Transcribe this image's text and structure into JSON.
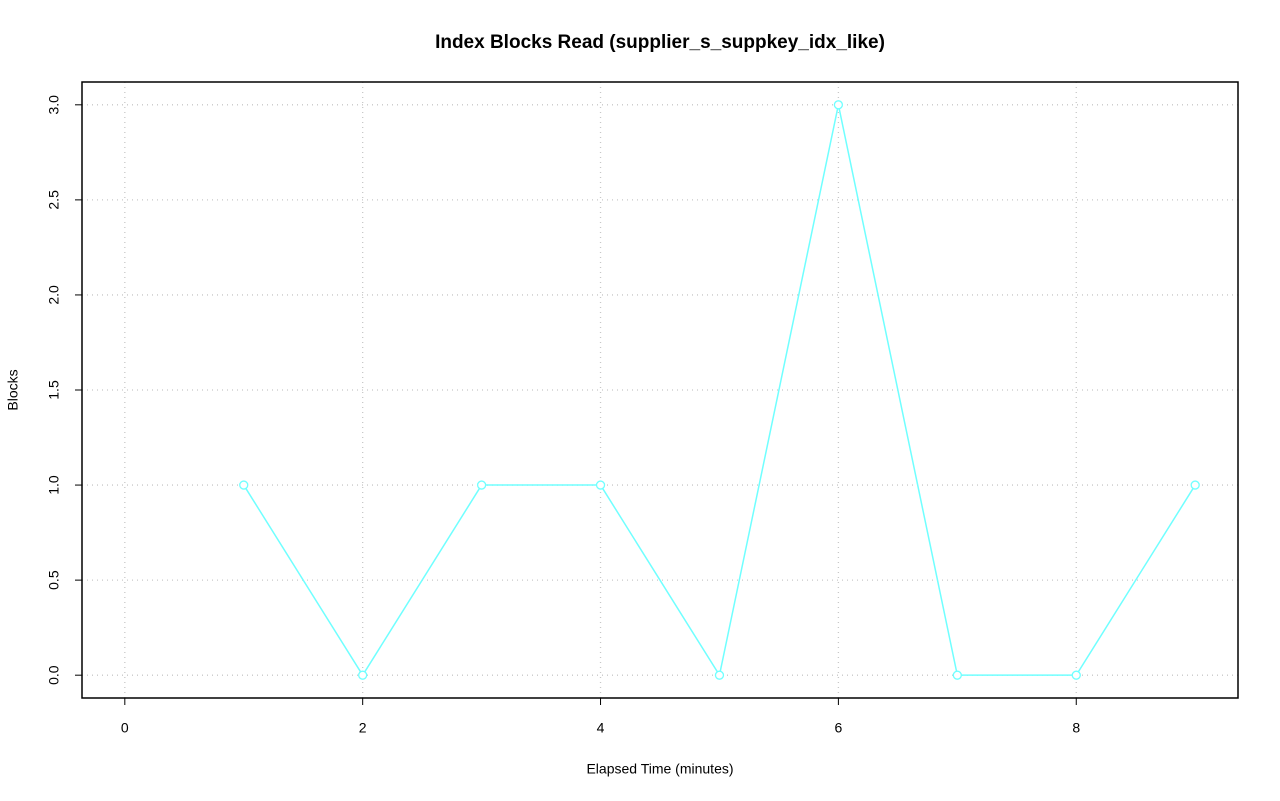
{
  "chart_data": {
    "type": "line",
    "title": "Index Blocks Read (supplier_s_suppkey_idx_like)",
    "x_label": "Elapsed Time (minutes)",
    "y_label": "Blocks",
    "x": [
      1,
      2,
      3,
      4,
      5,
      6,
      7,
      8,
      9
    ],
    "series": [
      {
        "color": "#70ffff",
        "values": [
          1,
          0,
          1,
          1,
          0,
          3,
          0,
          0,
          1
        ]
      }
    ],
    "xlim": [
      -0.36,
      9.36
    ],
    "xticks": [
      0,
      2,
      4,
      6,
      8
    ],
    "ylim": [
      -0.12,
      3.12
    ],
    "yticks": [
      {
        "value": 0,
        "label": "0.0"
      },
      {
        "value": 0.5,
        "label": "0.5"
      },
      {
        "value": 1,
        "label": "1.0"
      },
      {
        "value": 1.5,
        "label": "1.5"
      },
      {
        "value": 2,
        "label": "2.0"
      },
      {
        "value": 2.5,
        "label": "2.5"
      },
      {
        "value": 3,
        "label": "3.0"
      }
    ],
    "grid": true
  }
}
